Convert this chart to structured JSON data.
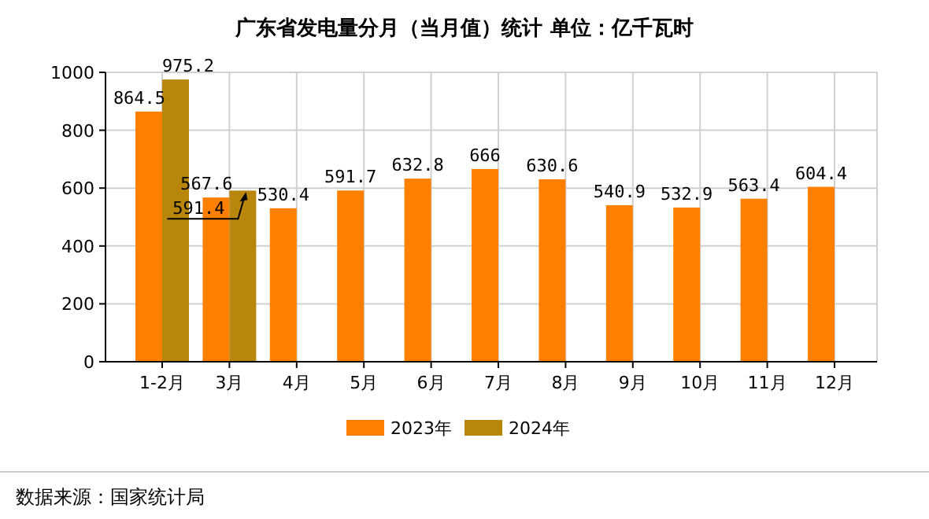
{
  "chart_data": {
    "type": "bar",
    "title": "广东省发电量分月（当月值）统计 单位：亿千瓦时",
    "categories": [
      "1-2月",
      "3月",
      "4月",
      "5月",
      "6月",
      "7月",
      "8月",
      "9月",
      "10月",
      "11月",
      "12月"
    ],
    "series": [
      {
        "name": "2023年",
        "color": "#ff8000",
        "values": [
          864.5,
          567.6,
          530.4,
          591.7,
          632.8,
          666,
          630.6,
          540.9,
          532.9,
          563.4,
          604.4
        ]
      },
      {
        "name": "2024年",
        "color": "#b8860b",
        "values": [
          975.2,
          591.4,
          null,
          null,
          null,
          null,
          null,
          null,
          null,
          null,
          null
        ]
      }
    ],
    "ylim": [
      0,
      1000
    ],
    "yticks": [
      0,
      200,
      400,
      600,
      800,
      1000
    ],
    "grid": true,
    "legend": "bottom",
    "data_labels": true,
    "annotations": [
      "数据来源：国家统计局"
    ]
  }
}
